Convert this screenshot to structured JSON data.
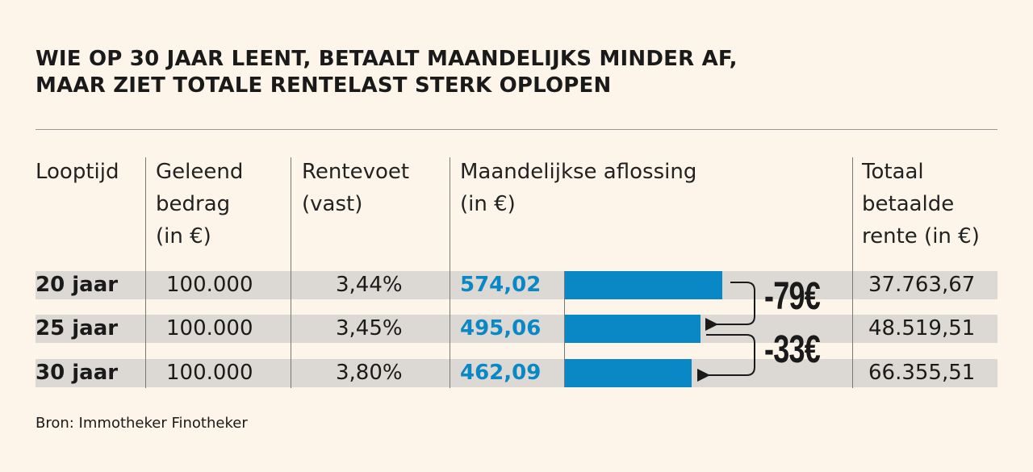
{
  "title": [
    "WIE OP 30 JAAR LEENT, BETAALT MAANDELIJKS MINDER AF,",
    "MAAR ZIET TOTALE RENTELAST STERK OPLOPEN"
  ],
  "headers": {
    "looptijd": "Looptijd",
    "geleend": [
      "Geleend",
      "bedrag",
      "(in €)"
    ],
    "rente": [
      "Rentevoet",
      "(vast)"
    ],
    "aflossing": [
      "Maandelijkse aflossing",
      "(in €)"
    ],
    "totaal": [
      "Totaal",
      "betaalde",
      "rente (in €)"
    ]
  },
  "chart_data": {
    "type": "table",
    "categories": [
      "20 jaar",
      "25 jaar",
      "30 jaar"
    ],
    "rows": [
      {
        "looptijd": "20 jaar",
        "bedrag": "100.000",
        "rentevoet": "3,44%",
        "aflossing": "574,02",
        "aflossing_value": 574.02,
        "totaal": "37.763,67"
      },
      {
        "looptijd": "25 jaar",
        "bedrag": "100.000",
        "rentevoet": "3,45%",
        "aflossing": "495,06",
        "aflossing_value": 495.06,
        "totaal": "48.519,51"
      },
      {
        "looptijd": "30 jaar",
        "bedrag": "100.000",
        "rentevoet": "3,80%",
        "aflossing": "462,09",
        "aflossing_value": 462.09,
        "totaal": "66.355,51"
      }
    ],
    "annotations": [
      "-79€",
      "-33€"
    ],
    "bar_color": "#0a88c5"
  },
  "source": "Bron: Immotheker Finotheker"
}
